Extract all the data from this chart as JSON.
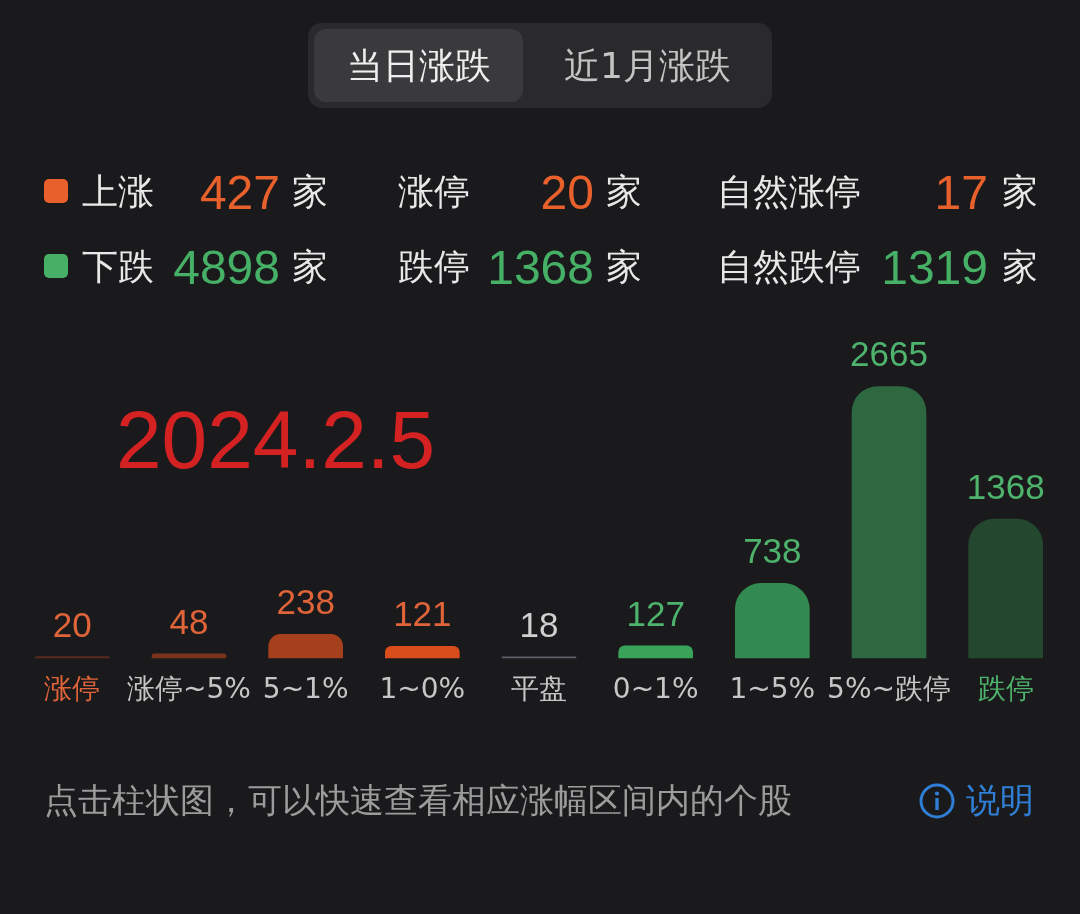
{
  "chart_data": {
    "type": "bar",
    "categories": [
      "涨停",
      "涨停~5%",
      "5~1%",
      "1~0%",
      "平盘",
      "0~1%",
      "1~5%",
      "5%~跌停",
      "跌停"
    ],
    "values": [
      20,
      48,
      238,
      121,
      18,
      127,
      738,
      2665,
      1368
    ],
    "colors": [
      "#5a2b1e",
      "#7a321c",
      "#a63f1c",
      "#d94c1c",
      "#5c5e68",
      "#3aa35a",
      "#338a50",
      "#2d6840",
      "#24472f"
    ],
    "data_labels": true,
    "annotations": [
      "当日涨跌",
      "近1月涨跌",
      "上涨 427 家",
      "涨停 20 家",
      "自然涨停 17 家",
      "下跌 4898 家",
      "跌停 1368 家",
      "自然跌停 1319 家",
      "2024.2.5",
      "点击柱状图，可以快速查看相应涨幅区间内的个股",
      "说明"
    ]
  }
}
